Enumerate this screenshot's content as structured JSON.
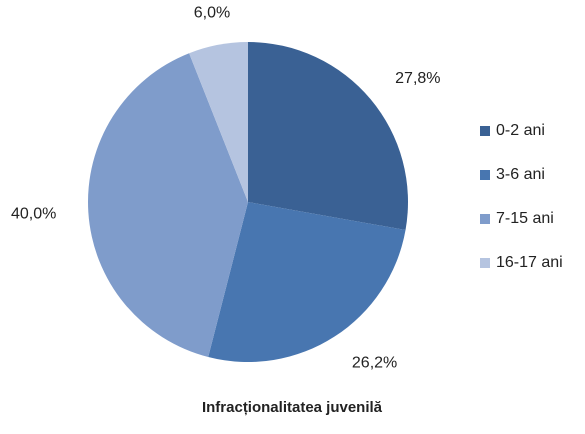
{
  "chart_data": {
    "type": "pie",
    "title": "Infracționalitatea juvenilă",
    "categories": [
      "0-2 ani",
      "3-6 ani",
      "7-15 ani",
      "16-17 ani"
    ],
    "values": [
      27.8,
      26.2,
      40.0,
      6.0
    ],
    "value_labels": [
      "27,8%",
      "26,2%",
      "40,0%",
      "6,0%"
    ],
    "colors": [
      "#3a6194",
      "#4876b0",
      "#7f9ccb",
      "#b5c4e0"
    ],
    "legend": "right"
  }
}
